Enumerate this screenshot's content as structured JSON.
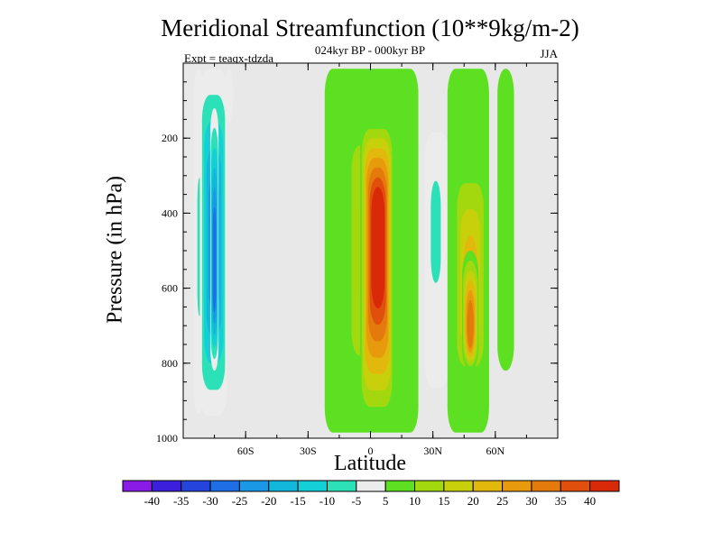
{
  "chart_data": {
    "type": "heatmap",
    "title": "Meridional Streamfunction (10**9kg/m-2)",
    "subtitle": "024kyr BP - 000kyr BP",
    "experiment": "Expt = teaqx-tdzda",
    "season": "JJA",
    "xlabel": "Latitude",
    "ylabel": "Pressure (in hPa)",
    "xlim": [
      -90,
      90
    ],
    "ylim": [
      1000,
      0
    ],
    "x_ticks": [
      {
        "value": -60,
        "label": "60S"
      },
      {
        "value": -30,
        "label": "30S"
      },
      {
        "value": 0,
        "label": "0"
      },
      {
        "value": 30,
        "label": "30N"
      },
      {
        "value": 60,
        "label": "60N"
      }
    ],
    "y_ticks": [
      {
        "value": 200,
        "label": "200"
      },
      {
        "value": 400,
        "label": "400"
      },
      {
        "value": 600,
        "label": "600"
      },
      {
        "value": 800,
        "label": "800"
      },
      {
        "value": 1000,
        "label": "1000"
      }
    ],
    "colorbar": {
      "levels": [
        -40,
        -35,
        -30,
        -25,
        -20,
        -15,
        -10,
        -5,
        5,
        10,
        15,
        20,
        25,
        30,
        35,
        40
      ],
      "labels": [
        "-40",
        "-35",
        "-30",
        "-25",
        "-20",
        "-15",
        "-10",
        "-5",
        "5",
        "10",
        "15",
        "20",
        "25",
        "30",
        "35",
        "40"
      ],
      "colors": [
        "#8a1be6",
        "#3c1fdc",
        "#2444dc",
        "#1e6ee6",
        "#1a98e6",
        "#12b8dc",
        "#12cfd8",
        "#2ce0b8",
        "#ececec",
        "#5ee022",
        "#a4d80e",
        "#c8d00c",
        "#e2b80c",
        "#e69a0c",
        "#e47a0c",
        "#e0500c",
        "#d82a08"
      ]
    },
    "fields": [
      {
        "lat": [
          -85,
          -80
        ],
        "p": [
          15,
          935
        ],
        "value": -12,
        "peak": [
          -82,
          500
        ]
      },
      {
        "lat": [
          -82,
          -69
        ],
        "p": [
          15,
          940
        ],
        "value": -25,
        "peak": [
          -75,
          480
        ]
      },
      {
        "lat": [
          -77,
          -73
        ],
        "p": [
          120,
          820
        ],
        "value": -34,
        "peak": [
          -75,
          560
        ]
      },
      {
        "lat": [
          -70,
          -66
        ],
        "p": [
          15,
          160
        ],
        "value": -7,
        "peak": [
          -68,
          60
        ]
      },
      {
        "lat": [
          -22,
          23
        ],
        "p": [
          15,
          985
        ],
        "value": 7,
        "peak": [
          0,
          500
        ]
      },
      {
        "lat": [
          -13,
          13
        ],
        "p": [
          100,
          900
        ],
        "value": 15,
        "peak": [
          0,
          500
        ]
      },
      {
        "lat": [
          -5,
          11
        ],
        "p": [
          150,
          960
        ],
        "value": 40,
        "peak": [
          4,
          450
        ]
      },
      {
        "lat": [
          26,
          38
        ],
        "p": [
          185,
          865
        ],
        "value": -12,
        "peak": [
          31,
          400
        ]
      },
      {
        "lat": [
          37,
          57
        ],
        "p": [
          15,
          985
        ],
        "value": 8,
        "peak": [
          48,
          550
        ]
      },
      {
        "lat": [
          40,
          56
        ],
        "p": [
          250,
          860
        ],
        "value": 20,
        "peak": [
          48,
          600
        ]
      },
      {
        "lat": [
          44,
          52
        ],
        "p": [
          500,
          820
        ],
        "value": 30,
        "peak": [
          48,
          720
        ]
      },
      {
        "lat": [
          61,
          69
        ],
        "p": [
          15,
          820
        ],
        "value": 6,
        "peak": [
          64,
          400
        ]
      }
    ]
  }
}
